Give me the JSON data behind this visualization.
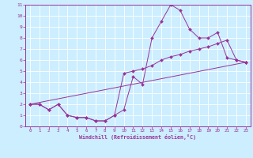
{
  "xlabel": "Windchill (Refroidissement éolien,°C)",
  "background_color": "#cceeff",
  "line_color": "#993399",
  "xlim": [
    -0.5,
    23.5
  ],
  "ylim": [
    0,
    11
  ],
  "xticks": [
    0,
    1,
    2,
    3,
    4,
    5,
    6,
    7,
    8,
    9,
    10,
    11,
    12,
    13,
    14,
    15,
    16,
    17,
    18,
    19,
    20,
    21,
    22,
    23
  ],
  "yticks": [
    0,
    1,
    2,
    3,
    4,
    5,
    6,
    7,
    8,
    9,
    10,
    11
  ],
  "line1_x": [
    0,
    1,
    2,
    3,
    4,
    5,
    6,
    7,
    8,
    9,
    10,
    11,
    12,
    13,
    14,
    15,
    16,
    17,
    18,
    19,
    20,
    21,
    22,
    23
  ],
  "line1_y": [
    2.0,
    2.0,
    1.5,
    2.0,
    1.0,
    0.8,
    0.8,
    0.5,
    0.5,
    1.0,
    1.5,
    4.5,
    3.8,
    8.0,
    9.5,
    11.0,
    10.5,
    8.8,
    8.0,
    8.0,
    8.5,
    6.2,
    6.0,
    5.8
  ],
  "line2_x": [
    0,
    1,
    2,
    3,
    4,
    5,
    6,
    7,
    8,
    9,
    10,
    11,
    12,
    13,
    14,
    15,
    16,
    17,
    18,
    19,
    20,
    21,
    22,
    23
  ],
  "line2_y": [
    2.0,
    2.0,
    1.5,
    2.0,
    1.0,
    0.8,
    0.8,
    0.5,
    0.5,
    1.0,
    4.8,
    5.0,
    5.2,
    5.5,
    6.0,
    6.3,
    6.5,
    6.8,
    7.0,
    7.2,
    7.5,
    7.8,
    6.0,
    5.8
  ],
  "line3_x": [
    0,
    23
  ],
  "line3_y": [
    2.0,
    5.8
  ]
}
